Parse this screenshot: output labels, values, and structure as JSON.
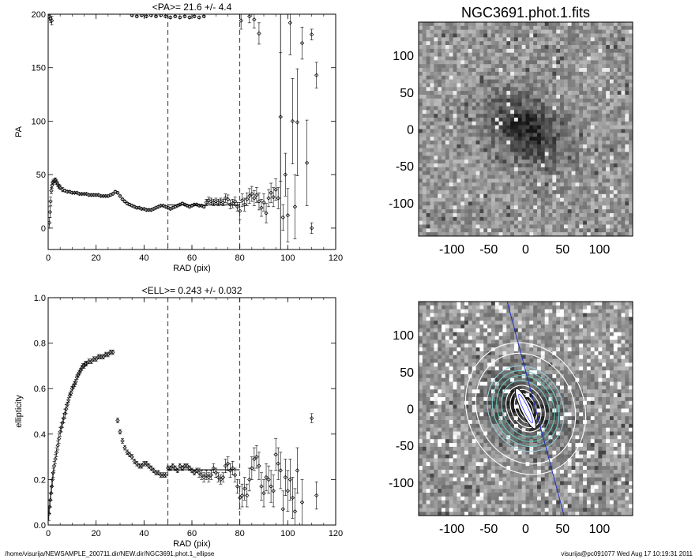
{
  "footer": {
    "left": "/home/visurija/NEWSAMPLE_200711.dir/NEW.dir/NGC3691.phot.1_ellipse",
    "right": "visurija@pc091077  Wed Aug 17 10:19:31 2011"
  },
  "image_panels": {
    "title": "NGC3691.phot.1.fits",
    "ticks": [
      "-100",
      "-50",
      "0",
      "50",
      "100"
    ],
    "tick_values": [
      -100,
      -50,
      0,
      50,
      100
    ],
    "range": [
      -145,
      145
    ]
  },
  "chart_data": [
    {
      "type": "scatter",
      "title": "<PA>=  21.6 +/-   4.4",
      "xlabel": "RAD (pix)",
      "ylabel": "PA",
      "xlim": [
        0,
        120
      ],
      "ylim": [
        -20,
        200
      ],
      "xticks": [
        "0",
        "20",
        "40",
        "60",
        "80",
        "100",
        "120"
      ],
      "yticks": [
        "0",
        "50",
        "100",
        "150",
        "200"
      ],
      "xtick_values": [
        0,
        20,
        40,
        60,
        80,
        100,
        120
      ],
      "ytick_values": [
        0,
        50,
        100,
        150,
        200
      ],
      "vlines_dashed": [
        50,
        80
      ],
      "vline_solid": 97,
      "mean_line": {
        "x": [
          50,
          80
        ],
        "y": 21.6
      },
      "points": [
        [
          0.5,
          5,
          5
        ],
        [
          0.8,
          15,
          5
        ],
        [
          1.0,
          25,
          4
        ],
        [
          1.3,
          35,
          3
        ],
        [
          1.6,
          40,
          3
        ],
        [
          2,
          43,
          2
        ],
        [
          2.5,
          44,
          2
        ],
        [
          3,
          45,
          2
        ],
        [
          3.5,
          43,
          2
        ],
        [
          4,
          41,
          2
        ],
        [
          4.5,
          39,
          2
        ],
        [
          5,
          38,
          2
        ],
        [
          6,
          36,
          2
        ],
        [
          7,
          35,
          1
        ],
        [
          8,
          34,
          1
        ],
        [
          9,
          34,
          1
        ],
        [
          10,
          33,
          1
        ],
        [
          11,
          33,
          1
        ],
        [
          12,
          33,
          1
        ],
        [
          13,
          32,
          1
        ],
        [
          14,
          32,
          1
        ],
        [
          15,
          32,
          1
        ],
        [
          16,
          32,
          1
        ],
        [
          17,
          31,
          1
        ],
        [
          18,
          31,
          1
        ],
        [
          19,
          31,
          1
        ],
        [
          20,
          31,
          1
        ],
        [
          21,
          31,
          1
        ],
        [
          22,
          30,
          1
        ],
        [
          23,
          30,
          1
        ],
        [
          24,
          30,
          1
        ],
        [
          25,
          30,
          1
        ],
        [
          26,
          31,
          1
        ],
        [
          27,
          32,
          1
        ],
        [
          28,
          34,
          1
        ],
        [
          29,
          33,
          1
        ],
        [
          30,
          30,
          1
        ],
        [
          31,
          27,
          1
        ],
        [
          32,
          25,
          1
        ],
        [
          33,
          23,
          1
        ],
        [
          34,
          22,
          1
        ],
        [
          35,
          21,
          1
        ],
        [
          36,
          20,
          1
        ],
        [
          37,
          19,
          1
        ],
        [
          38,
          19,
          1
        ],
        [
          39,
          18,
          1
        ],
        [
          40,
          18,
          1
        ],
        [
          41,
          17,
          1
        ],
        [
          42,
          17,
          1
        ],
        [
          43,
          17,
          1
        ],
        [
          44,
          18,
          1
        ],
        [
          45,
          19,
          1
        ],
        [
          46,
          20,
          1
        ],
        [
          47,
          21,
          1
        ],
        [
          48,
          21,
          1
        ],
        [
          49,
          20,
          1
        ],
        [
          50,
          19,
          1
        ],
        [
          51,
          18,
          1
        ],
        [
          52,
          19,
          1
        ],
        [
          53,
          20,
          1
        ],
        [
          54,
          21,
          1
        ],
        [
          55,
          22,
          1
        ],
        [
          56,
          23,
          1
        ],
        [
          57,
          22,
          1
        ],
        [
          58,
          21,
          1
        ],
        [
          59,
          20,
          1
        ],
        [
          60,
          21,
          1
        ],
        [
          61,
          22,
          1
        ],
        [
          62,
          22,
          1
        ],
        [
          63,
          21,
          1
        ],
        [
          64,
          21,
          1
        ],
        [
          65,
          20,
          1
        ],
        [
          66,
          24,
          3
        ],
        [
          67,
          26,
          3
        ],
        [
          68,
          25,
          3
        ],
        [
          69,
          24,
          3
        ],
        [
          70,
          25,
          3
        ],
        [
          71,
          24,
          3
        ],
        [
          72,
          25,
          3
        ],
        [
          73,
          24,
          3
        ],
        [
          74,
          28,
          4
        ],
        [
          75,
          27,
          4
        ],
        [
          76,
          22,
          4
        ],
        [
          77,
          23,
          4
        ],
        [
          78,
          25,
          4
        ],
        [
          79,
          20,
          4
        ],
        [
          80,
          16,
          8
        ],
        [
          81,
          26,
          6
        ],
        [
          82,
          22,
          6
        ],
        [
          83,
          27,
          6
        ],
        [
          84,
          30,
          7
        ],
        [
          85,
          32,
          7
        ],
        [
          86,
          28,
          7
        ],
        [
          87,
          31,
          7
        ],
        [
          88,
          25,
          8
        ],
        [
          89,
          19,
          8
        ],
        [
          90,
          24,
          8
        ],
        [
          91,
          14,
          9
        ],
        [
          92,
          28,
          8
        ],
        [
          93,
          33,
          9
        ],
        [
          94,
          29,
          9
        ],
        [
          95,
          36,
          10
        ],
        [
          96,
          28,
          10
        ],
        [
          97,
          104,
          60
        ],
        [
          98,
          10,
          12
        ],
        [
          99,
          50,
          20
        ],
        [
          100,
          12,
          25
        ],
        [
          101,
          192,
          30
        ],
        [
          102,
          100,
          40
        ],
        [
          103,
          20,
          30
        ],
        [
          104,
          99,
          50
        ],
        [
          106,
          173,
          15
        ],
        [
          108,
          61,
          40
        ],
        [
          110,
          0,
          5
        ],
        [
          110,
          181,
          5
        ],
        [
          112,
          143,
          12
        ],
        [
          80.5,
          194,
          8
        ],
        [
          84,
          198,
          6
        ],
        [
          86,
          195,
          8
        ],
        [
          88,
          182,
          10
        ],
        [
          0.5,
          198,
          4
        ],
        [
          1,
          196,
          4
        ],
        [
          1.5,
          194,
          4
        ],
        [
          35,
          199,
          1
        ],
        [
          37,
          198,
          1
        ],
        [
          39,
          199,
          1
        ],
        [
          41,
          198,
          1
        ],
        [
          43,
          199,
          1
        ],
        [
          45,
          198,
          1
        ],
        [
          47,
          199,
          1
        ],
        [
          49,
          198,
          1
        ],
        [
          51,
          197,
          1
        ],
        [
          53,
          198,
          1
        ],
        [
          55,
          197,
          1
        ],
        [
          57,
          198,
          1
        ],
        [
          59,
          197,
          1
        ],
        [
          61,
          198,
          1
        ],
        [
          63,
          197,
          1
        ],
        [
          65,
          198,
          1
        ]
      ]
    },
    {
      "type": "scatter",
      "title": "<ELL>= 0.243 +/-  0.032",
      "xlabel": "RAD (pix)",
      "ylabel": "ellipticity",
      "xlim": [
        0,
        120
      ],
      "ylim": [
        0,
        1
      ],
      "xticks": [
        "0",
        "20",
        "40",
        "60",
        "80",
        "100",
        "120"
      ],
      "yticks": [
        "0.0",
        "0.2",
        "0.4",
        "0.6",
        "0.8",
        "1.0"
      ],
      "xtick_values": [
        0,
        20,
        40,
        60,
        80,
        100,
        120
      ],
      "ytick_values": [
        0,
        0.2,
        0.4,
        0.6,
        0.8,
        1.0
      ],
      "vlines_dashed": [
        50,
        80
      ],
      "mean_line": {
        "x": [
          50,
          80
        ],
        "y": 0.243
      },
      "points": [
        [
          0.3,
          0.05,
          0.03
        ],
        [
          0.6,
          0.08,
          0.03
        ],
        [
          0.9,
          0.11,
          0.03
        ],
        [
          1.2,
          0.14,
          0.03
        ],
        [
          1.5,
          0.17,
          0.03
        ],
        [
          1.8,
          0.2,
          0.03
        ],
        [
          2.1,
          0.23,
          0.02
        ],
        [
          2.5,
          0.26,
          0.02
        ],
        [
          3,
          0.29,
          0.02
        ],
        [
          3.5,
          0.32,
          0.02
        ],
        [
          4,
          0.35,
          0.02
        ],
        [
          4.5,
          0.38,
          0.02
        ],
        [
          5,
          0.41,
          0.02
        ],
        [
          5.5,
          0.43,
          0.02
        ],
        [
          6,
          0.45,
          0.02
        ],
        [
          6.5,
          0.47,
          0.02
        ],
        [
          7,
          0.49,
          0.02
        ],
        [
          7.5,
          0.51,
          0.02
        ],
        [
          8,
          0.53,
          0.01
        ],
        [
          8.5,
          0.55,
          0.01
        ],
        [
          9,
          0.57,
          0.01
        ],
        [
          9.5,
          0.58,
          0.01
        ],
        [
          10,
          0.6,
          0.01
        ],
        [
          10.5,
          0.61,
          0.01
        ],
        [
          11,
          0.62,
          0.01
        ],
        [
          11.5,
          0.63,
          0.01
        ],
        [
          12,
          0.65,
          0.01
        ],
        [
          12.5,
          0.66,
          0.01
        ],
        [
          13,
          0.67,
          0.01
        ],
        [
          13.5,
          0.68,
          0.01
        ],
        [
          14,
          0.69,
          0.01
        ],
        [
          14.5,
          0.7,
          0.01
        ],
        [
          15,
          0.7,
          0.01
        ],
        [
          15.5,
          0.71,
          0.01
        ],
        [
          16,
          0.71,
          0.01
        ],
        [
          17,
          0.72,
          0.01
        ],
        [
          18,
          0.72,
          0.01
        ],
        [
          19,
          0.73,
          0.01
        ],
        [
          20,
          0.73,
          0.01
        ],
        [
          21,
          0.74,
          0.01
        ],
        [
          22,
          0.74,
          0.01
        ],
        [
          23,
          0.74,
          0.01
        ],
        [
          24,
          0.75,
          0.01
        ],
        [
          25,
          0.75,
          0.01
        ],
        [
          26,
          0.76,
          0.01
        ],
        [
          27,
          0.76,
          0.01
        ],
        [
          29,
          0.46,
          0.01
        ],
        [
          30,
          0.41,
          0.01
        ],
        [
          31,
          0.37,
          0.01
        ],
        [
          32,
          0.34,
          0.01
        ],
        [
          33,
          0.32,
          0.01
        ],
        [
          34,
          0.31,
          0.01
        ],
        [
          35,
          0.3,
          0.01
        ],
        [
          36,
          0.28,
          0.01
        ],
        [
          37,
          0.27,
          0.01
        ],
        [
          38,
          0.26,
          0.01
        ],
        [
          39,
          0.26,
          0.01
        ],
        [
          40,
          0.27,
          0.01
        ],
        [
          41,
          0.27,
          0.01
        ],
        [
          42,
          0.26,
          0.01
        ],
        [
          43,
          0.25,
          0.01
        ],
        [
          44,
          0.24,
          0.01
        ],
        [
          45,
          0.23,
          0.01
        ],
        [
          46,
          0.23,
          0.01
        ],
        [
          47,
          0.22,
          0.01
        ],
        [
          48,
          0.22,
          0.01
        ],
        [
          49,
          0.22,
          0.01
        ],
        [
          50,
          0.25,
          0.01
        ],
        [
          51,
          0.25,
          0.01
        ],
        [
          52,
          0.26,
          0.01
        ],
        [
          53,
          0.25,
          0.01
        ],
        [
          54,
          0.24,
          0.01
        ],
        [
          55,
          0.26,
          0.01
        ],
        [
          56,
          0.25,
          0.01
        ],
        [
          57,
          0.26,
          0.01
        ],
        [
          58,
          0.26,
          0.01
        ],
        [
          59,
          0.25,
          0.01
        ],
        [
          60,
          0.24,
          0.01
        ],
        [
          61,
          0.23,
          0.01
        ],
        [
          62,
          0.24,
          0.01
        ],
        [
          63,
          0.23,
          0.02
        ],
        [
          64,
          0.22,
          0.02
        ],
        [
          65,
          0.21,
          0.02
        ],
        [
          66,
          0.22,
          0.02
        ],
        [
          67,
          0.21,
          0.02
        ],
        [
          68,
          0.22,
          0.02
        ],
        [
          69,
          0.25,
          0.02
        ],
        [
          70,
          0.23,
          0.02
        ],
        [
          71,
          0.21,
          0.02
        ],
        [
          72,
          0.2,
          0.02
        ],
        [
          73,
          0.21,
          0.02
        ],
        [
          74,
          0.26,
          0.03
        ],
        [
          75,
          0.27,
          0.03
        ],
        [
          76,
          0.24,
          0.03
        ],
        [
          77,
          0.25,
          0.03
        ],
        [
          78,
          0.22,
          0.03
        ],
        [
          79,
          0.17,
          0.03
        ],
        [
          80,
          0.12,
          0.05
        ],
        [
          81,
          0.13,
          0.05
        ],
        [
          82,
          0.16,
          0.05
        ],
        [
          83,
          0.13,
          0.05
        ],
        [
          84,
          0.2,
          0.05
        ],
        [
          85,
          0.25,
          0.05
        ],
        [
          86,
          0.29,
          0.05
        ],
        [
          87,
          0.3,
          0.05
        ],
        [
          88,
          0.26,
          0.06
        ],
        [
          89,
          0.17,
          0.06
        ],
        [
          90,
          0.14,
          0.06
        ],
        [
          91,
          0.21,
          0.06
        ],
        [
          92,
          0.2,
          0.06
        ],
        [
          93,
          0.17,
          0.07
        ],
        [
          94,
          0.15,
          0.07
        ],
        [
          95,
          0.31,
          0.07
        ],
        [
          96,
          0.27,
          0.07
        ],
        [
          97,
          0.24,
          0.08
        ],
        [
          98,
          0.07,
          0.08
        ],
        [
          99,
          0.21,
          0.08
        ],
        [
          100,
          0.15,
          0.09
        ],
        [
          101,
          0.2,
          0.09
        ],
        [
          102,
          0.12,
          0.09
        ],
        [
          103,
          0.06,
          0.1
        ],
        [
          104,
          0.24,
          0.1
        ],
        [
          106,
          0.1,
          0.1
        ],
        [
          110,
          0.47,
          0.02
        ],
        [
          112,
          0.13,
          0.06
        ]
      ]
    }
  ]
}
